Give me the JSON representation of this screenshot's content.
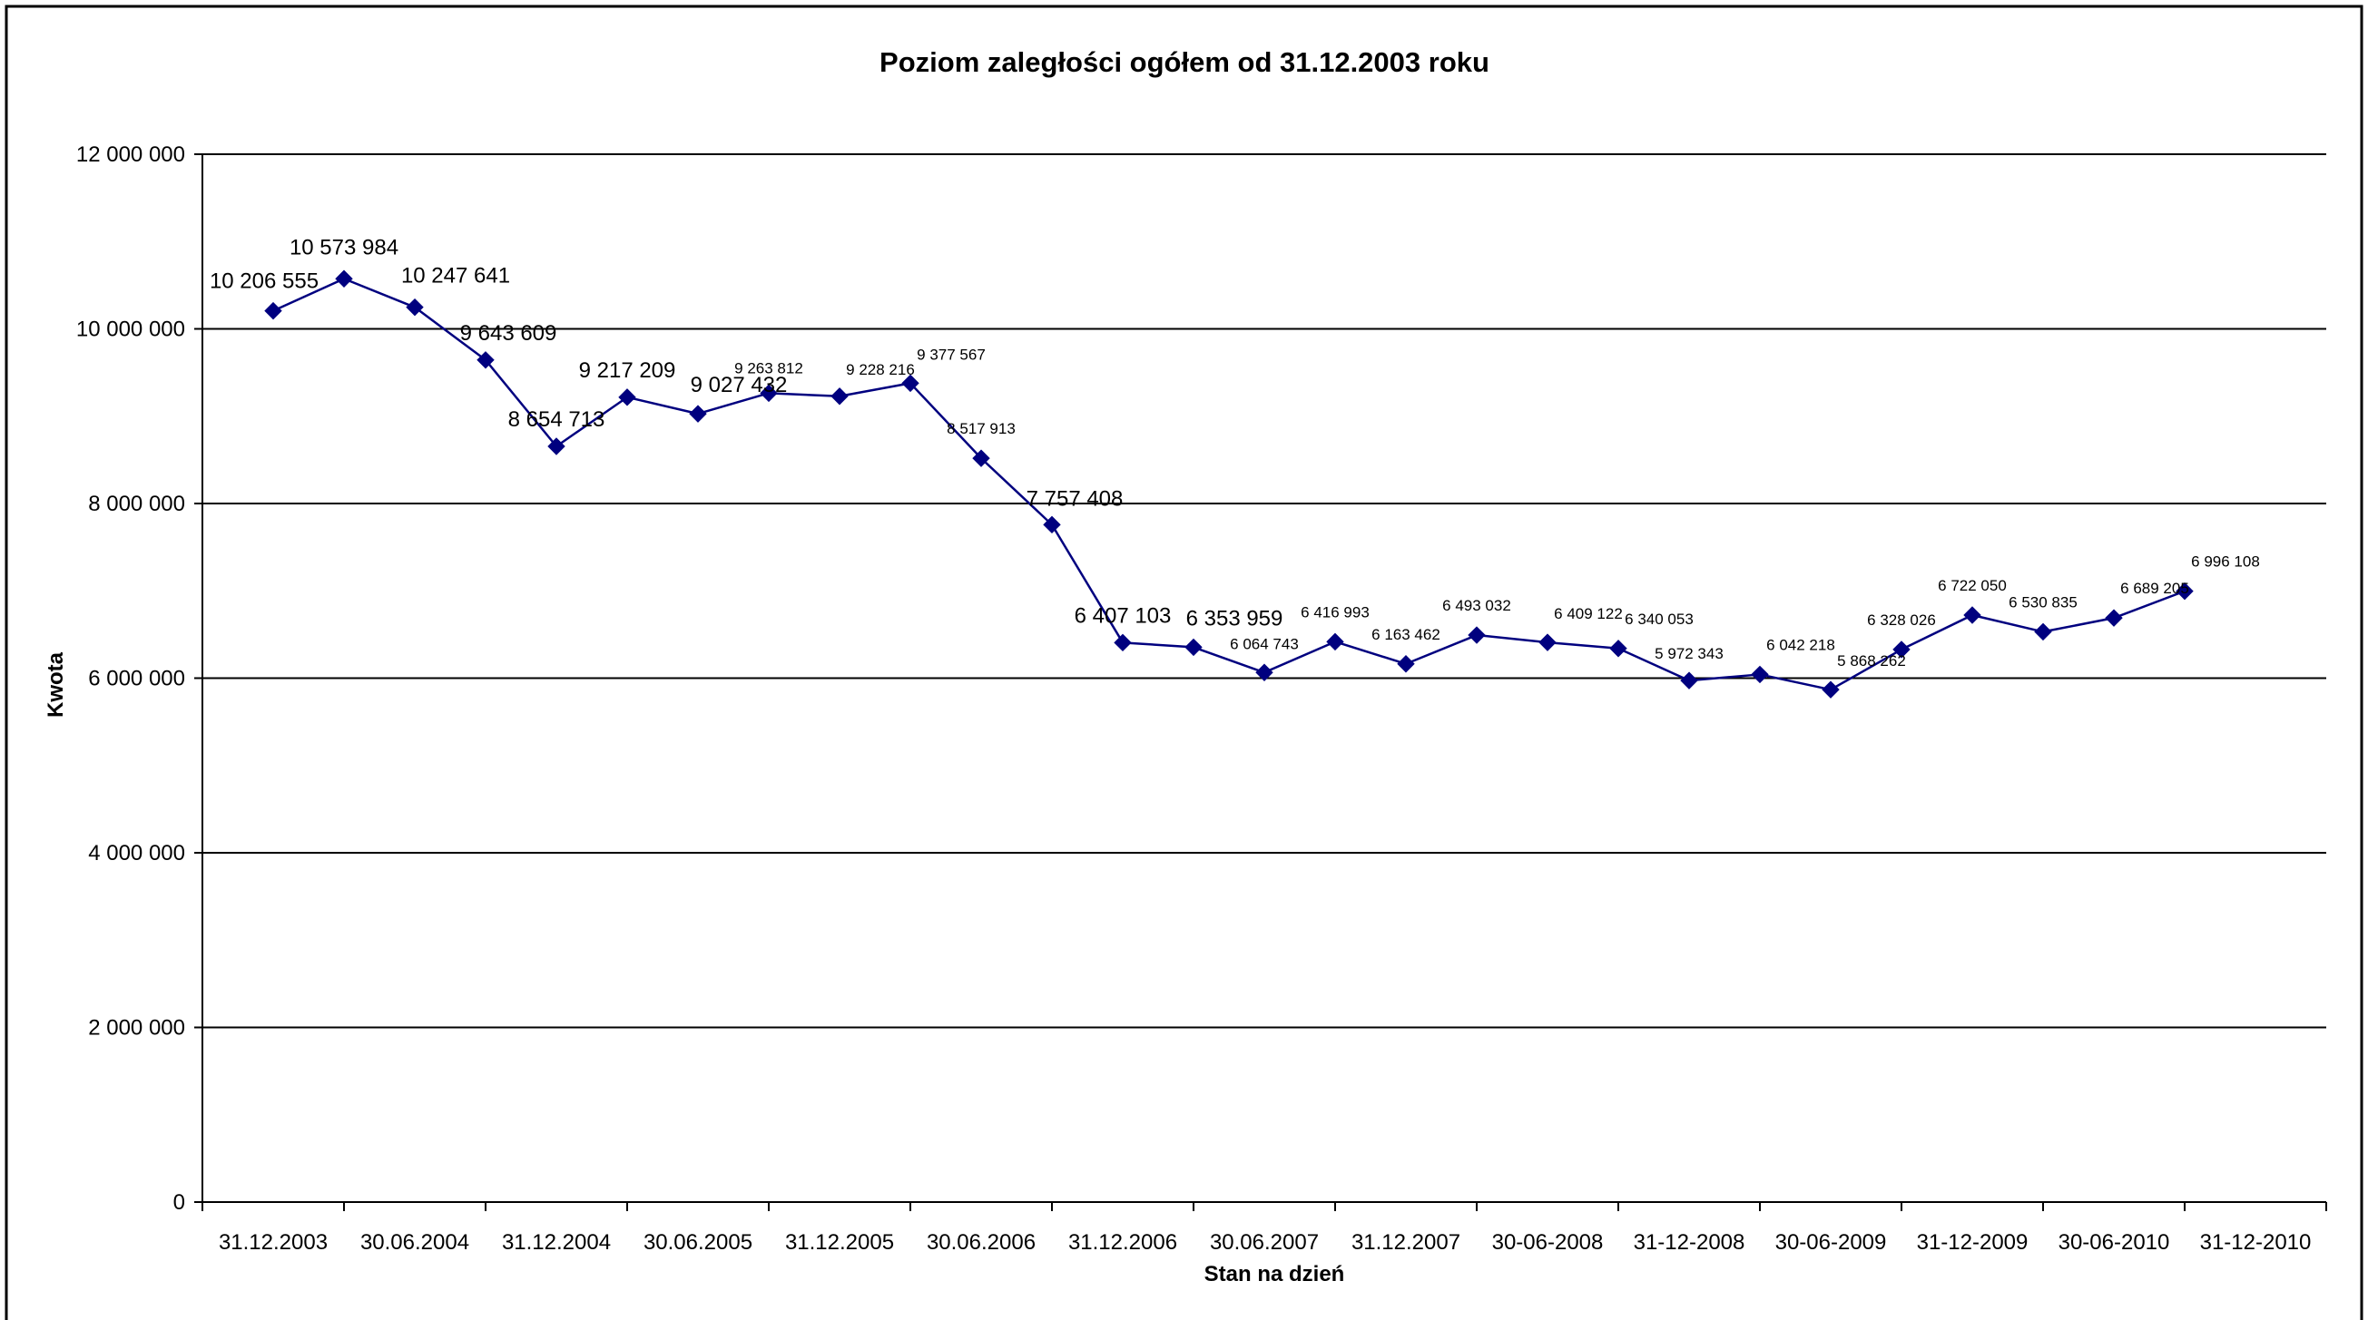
{
  "chart_data": {
    "type": "line",
    "title": "Poziom zaległości ogółem od 31.12.2003 roku",
    "xlabel": "Stan na dzień",
    "ylabel": "Kwota",
    "ylim": [
      0,
      12000000
    ],
    "y_ticks": [
      0,
      2000000,
      4000000,
      6000000,
      8000000,
      10000000,
      12000000
    ],
    "y_tick_labels": [
      "0",
      "2 000 000",
      "4 000 000",
      "6 000 000",
      "8 000 000",
      "10 000 000",
      "12 000 000"
    ],
    "x_tick_labels": [
      "31.12.2003",
      "30.06.2004",
      "31.12.2004",
      "30.06.2005",
      "31.12.2005",
      "30.06.2006",
      "31.12.2006",
      "30.06.2007",
      "31.12.2007",
      "30-06-2008",
      "31-12-2008",
      "30-06-2009",
      "31-12-2009",
      "30-06-2010",
      "31-12-2010"
    ],
    "grid": "horizontal major gridlines",
    "legend": "none",
    "line_color": "#00007f",
    "marker": "diamond",
    "series": [
      {
        "values": [
          10206555,
          10573984,
          10247641,
          9643609,
          8654713,
          9217209,
          9027432,
          9263812,
          9228216,
          9377567,
          8517913,
          7757408,
          6407103,
          6353959,
          6064743,
          6416993,
          6163462,
          6493032,
          6409122,
          6340053,
          5972343,
          6042218,
          5868262,
          6328026,
          6722050,
          6530835,
          6689205,
          6996108
        ],
        "labels": [
          "10 206 555",
          "10 573 984",
          "10 247 641",
          "9 643 609",
          "8 654 713",
          "9 217 209",
          "9 027 432",
          "9 263 812",
          "9 228 216",
          "9 377 567",
          "8 517 913",
          "7 757 408",
          "6 407 103",
          "6 353 959",
          "6 064 743",
          "6 416 993",
          "6 163 462",
          "6 493 032",
          "6 409 122",
          "6 340 053",
          "5 972 343",
          "6 042 218",
          "5 868 262",
          "6 328 026",
          "6 722 050",
          "6 530 835",
          "6 689 205",
          "6 996 108"
        ]
      }
    ]
  }
}
